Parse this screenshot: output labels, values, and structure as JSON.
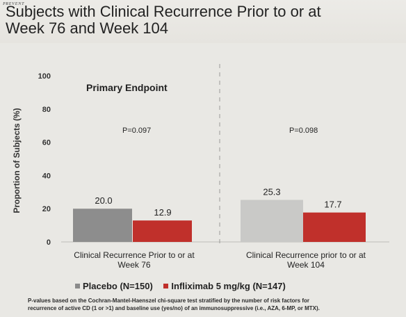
{
  "logo": "PREVENT",
  "title_line1": "Subjects with Clinical Recurrence Prior to or at",
  "title_line2": "Week 76 and Week 104",
  "primary_label": "Primary Endpoint",
  "pvalues": [
    "P=0.097",
    "P=0.098"
  ],
  "legend": [
    {
      "name": "Placebo (N=150)",
      "color": "#8a8a8a"
    },
    {
      "name": "Infliximab 5 mg/kg (N=147)",
      "color": "#c0302b"
    }
  ],
  "footnote_line1": "P-values based on the Cochran-Mantel-Haenszel chi-square test stratified by the number of risk factors for",
  "footnote_line2": "recurrence of active CD (1 or >1) and baseline use (yes/no) of an immunosuppressive (i.e., AZA, 6-MP, or MTX).",
  "chart_data": {
    "type": "bar",
    "categories": [
      "Clinical Recurrence Prior to or at Week 76",
      "Clinical Recurrence prior to or at Week 104"
    ],
    "category_lines": [
      [
        "Clinical Recurrence Prior to or at",
        "Week 76"
      ],
      [
        "Clinical Recurrence prior to or at",
        "Week 104"
      ]
    ],
    "series": [
      {
        "name": "Placebo (N=150)",
        "values": [
          20.0,
          25.3
        ],
        "labels": [
          "20.0",
          "25.3"
        ],
        "colors": [
          "#8d8d8d",
          "#c9c9c7"
        ]
      },
      {
        "name": "Infliximab 5 mg/kg (N=147)",
        "values": [
          12.9,
          17.7
        ],
        "labels": [
          "12.9",
          "17.7"
        ],
        "colors": [
          "#c0302b",
          "#c0302b"
        ]
      }
    ],
    "ylabel": "Proportion of Subjects (%)",
    "yticks": [
      0,
      20,
      40,
      60,
      80,
      100
    ],
    "ylim": [
      0,
      100
    ],
    "grid": false,
    "legend_position": "bottom"
  }
}
